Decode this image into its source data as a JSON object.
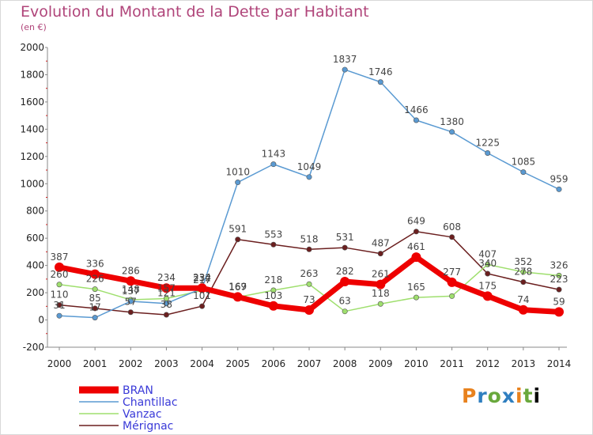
{
  "title": "Evolution du Montant de la Dette par Habitant",
  "subtitle": "(en €)",
  "logo": "Proxiti",
  "chart_data": {
    "type": "line",
    "x": [
      "2000",
      "2001",
      "2002",
      "2003",
      "2004",
      "2005",
      "2006",
      "2007",
      "2008",
      "2009",
      "2010",
      "2011",
      "2012",
      "2013",
      "2014"
    ],
    "ylim": [
      -200,
      2000
    ],
    "yticks": [
      -200,
      0,
      200,
      400,
      600,
      800,
      1000,
      1200,
      1400,
      1600,
      1800,
      2000
    ],
    "grid": false,
    "legend_position": "bottom-left",
    "series": [
      {
        "name": "Mérignac",
        "color": "#6b1f1f",
        "values": [
          110,
          85,
          57,
          38,
          101,
          591,
          553,
          518,
          531,
          487,
          649,
          608,
          340,
          278,
          223
        ],
        "labels": [
          "110",
          "85",
          "57",
          "38",
          "101",
          "591",
          "553",
          "518",
          "531",
          "487",
          "649",
          "608",
          "340",
          "278",
          "223"
        ]
      },
      {
        "name": "Vanzac",
        "color": "#9fdf6e",
        "values": [
          260,
          226,
          148,
          157,
          217,
          167,
          218,
          263,
          63,
          118,
          165,
          175,
          407,
          352,
          326
        ],
        "labels": [
          "260",
          "226",
          "148",
          "157",
          "217",
          "167",
          "218",
          "263",
          "63",
          "118",
          "165",
          "",
          "407",
          "352",
          "326"
        ]
      },
      {
        "name": "Chantillac",
        "color": "#5a9ad2",
        "values": [
          31,
          17,
          137,
          121,
          232,
          1010,
          1143,
          1049,
          1837,
          1746,
          1466,
          1380,
          1225,
          1085,
          959
        ],
        "labels": [
          "31",
          "17",
          "137",
          "121",
          "232",
          "1010",
          "1143",
          "1049",
          "1837",
          "1746",
          "1466",
          "1380",
          "1225",
          "1085",
          "959"
        ]
      },
      {
        "name": "BRAN",
        "color": "#ee0000",
        "values": [
          387,
          336,
          286,
          234,
          234,
          169,
          103,
          73,
          282,
          261,
          461,
          277,
          175,
          74,
          59
        ],
        "labels": [
          "387",
          "336",
          "286",
          "234",
          "234",
          "169",
          "103",
          "73",
          "282",
          "261",
          "461",
          "277",
          "175",
          "74",
          "59"
        ]
      }
    ],
    "legend": [
      "BRAN",
      "Chantillac",
      "Vanzac",
      "Mérignac"
    ]
  }
}
